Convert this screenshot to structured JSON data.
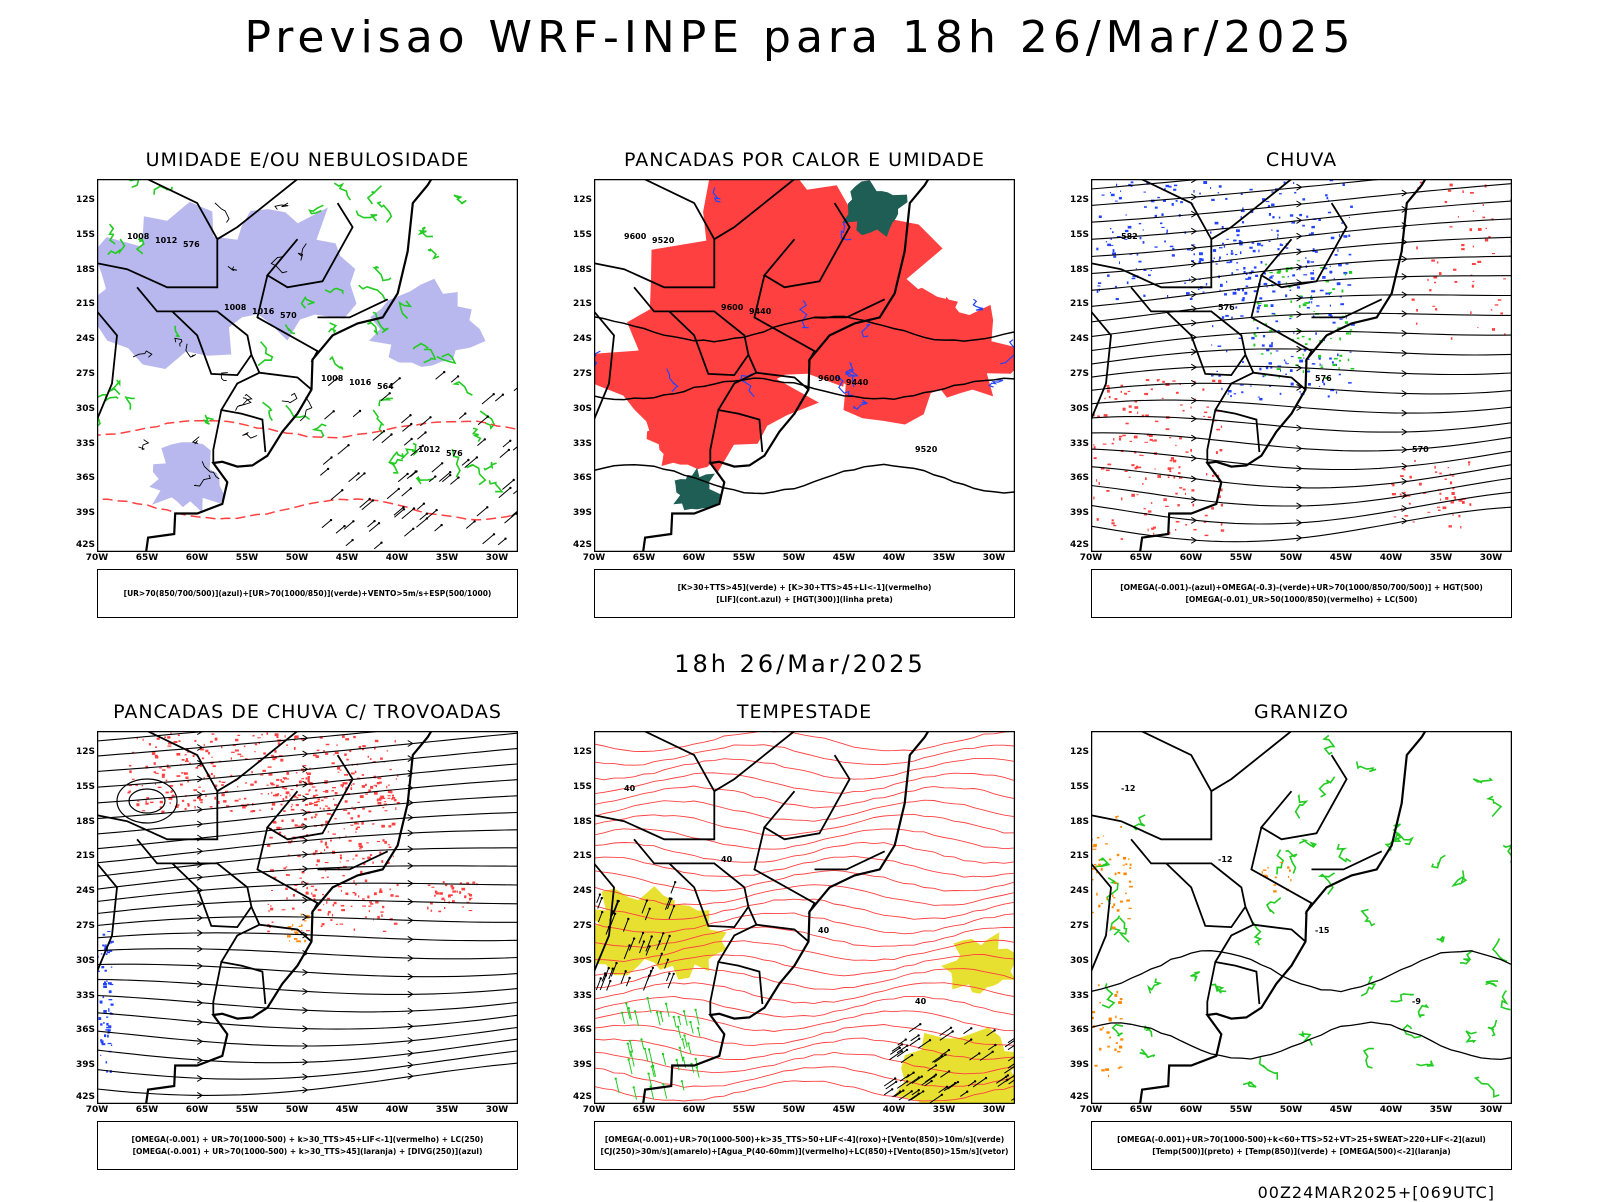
{
  "title": "Previsao WRF-INPE  para 18h 26/Mar/2025",
  "mid_title": "18h 26/Mar/2025",
  "footer": "00Z24MAR2025+[069UTC]",
  "lat_labels": [
    "12S",
    "15S",
    "18S",
    "21S",
    "24S",
    "27S",
    "30S",
    "33S",
    "36S",
    "39S",
    "42S"
  ],
  "lon_labels": [
    "70W",
    "65W",
    "60W",
    "55W",
    "50W",
    "45W",
    "40W",
    "35W",
    "30W"
  ],
  "colors": {
    "red": "#ff4040",
    "green": "#22cc22",
    "blue": "#2244ff",
    "lavender": "#b8b8ee",
    "darkgreen": "#1f5e55",
    "yellow": "#e8e030",
    "orange": "#ff8800"
  },
  "panels": [
    {
      "title": "UMIDADE E/OU NEBULOSIDADE",
      "legend": [
        "[UR>70(850/700/500)](azul)+[UR>70(1000/850)](verde)+VENTO>5m/s+ESP(500/1000)"
      ],
      "contours": [
        "1008",
        "1008",
        "1008",
        "1012",
        "1012",
        "1016",
        "1016",
        "576",
        "576",
        "570",
        "564"
      ]
    },
    {
      "title": "PANCADAS POR CALOR E UMIDADE",
      "legend": [
        "[K>30+TTS>45](verde) + [K>30+TTS>45+LI<-1](vermelho)",
        "[LIF](cont.azul) + [HGT(300)](linha preta)"
      ],
      "contours": [
        "9600",
        "9600",
        "9600",
        "9520",
        "9520",
        "9440",
        "9440"
      ]
    },
    {
      "title": "CHUVA",
      "legend": [
        "[OMEGA(-0.001)-(azul)+OMEGA(-0.3)-(verde)+UR>70(1000/850/700/500)] + HGT(500)",
        "[OMEGA(-0.01)_UR>50(1000/850)(vermelho) + LC(500)"
      ],
      "contours": [
        "582",
        "576",
        "576",
        "570"
      ]
    },
    {
      "title": "PANCADAS DE CHUVA C/ TROVOADAS",
      "legend": [
        "[OMEGA(-0.001) + UR>70(1000-500) + k>30_TTS>45+LIF<-1](vermelho) + LC(250)",
        "[OMEGA(-0.001) + UR>70(1000-500) + k>30_TTS>45](laranja) + [DIVG(250)](azul)"
      ],
      "contours": []
    },
    {
      "title": "TEMPESTADE",
      "legend": [
        "[OMEGA(-0.001)+UR>70(1000-500)+k>35_TTS>50+LIF<-4](roxo)+[Vento(850)>10m/s](verde)",
        "[CJ(250)>30m/s](amarelo)+[Agua_P(40-60mm)](vermelho)+LC(850)+[Vento(850)>15m/s](vetor)"
      ],
      "contours": [
        "40",
        "40",
        "40",
        "40"
      ]
    },
    {
      "title": "GRANIZO",
      "legend": [
        "[OMEGA(-0.001)+UR>70(1000-500)+k<60+TTS>52+VT>25+SWEAT>220+LIF<-2](azul)",
        "[Temp(500)](preto) + [Temp(850)](verde) + [OMEGA(500)<-2](laranja)"
      ],
      "contours": [
        "-12",
        "-12",
        "-15",
        "-9"
      ]
    }
  ]
}
